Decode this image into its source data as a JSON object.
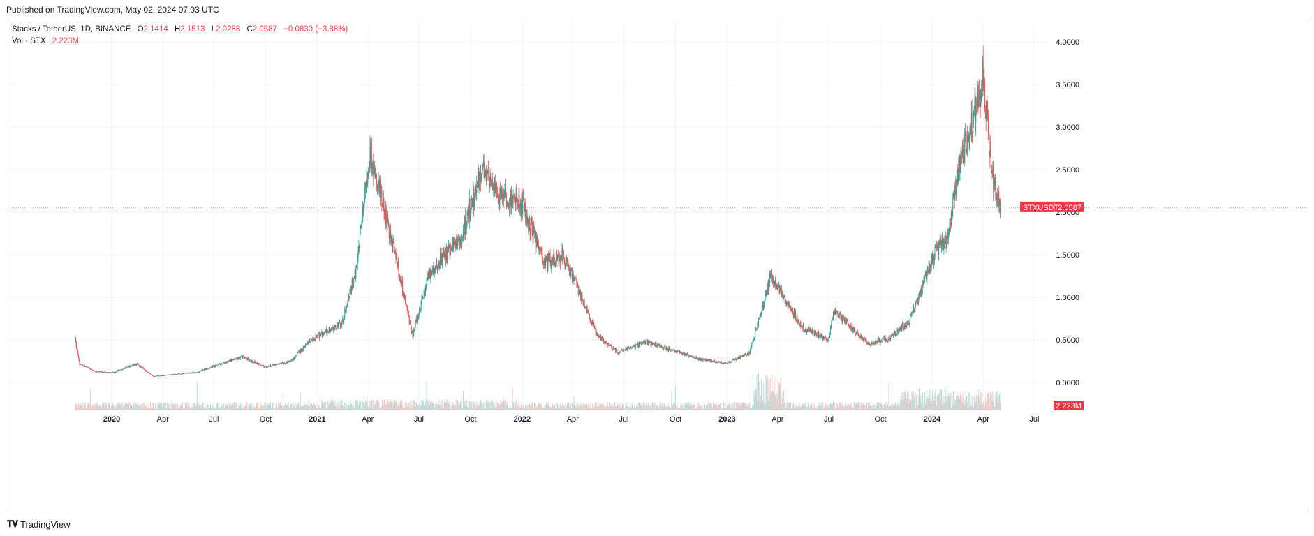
{
  "header": {
    "published": "Published on TradingView.com, May 02, 2024 07:03 UTC"
  },
  "legend": {
    "symbol": "Stacks / TetherUS, 1D, BINANCE",
    "o_label": "O",
    "o_value": "2.1414",
    "h_label": "H",
    "h_value": "2.1513",
    "l_label": "L",
    "l_value": "2.0288",
    "c_label": "C",
    "c_value": "2.0587",
    "change": "−0.0830 (−3.88%)",
    "vol_label": "Vol · STX",
    "vol_value": "2.223M"
  },
  "price_badge": {
    "symbol": "STXUSDT",
    "value": "2.0587"
  },
  "volume_badge": {
    "value": "2.223M"
  },
  "footer": {
    "brand": "TradingView",
    "logo": "tradingview-logo"
  },
  "colors": {
    "up": "#26a69a",
    "down": "#ef5350",
    "badge": "#f23645",
    "grid": "#f0f3fa"
  },
  "chart_data": {
    "type": "candlestick",
    "title": "Stacks / TetherUS, 1D, BINANCE",
    "ylim": [
      0,
      4.0
    ],
    "y_ticks": [
      "0.0000",
      "0.5000",
      "1.0000",
      "1.5000",
      "2.0000",
      "2.5000",
      "3.0000",
      "3.5000",
      "4.0000"
    ],
    "x_ticks": [
      "2020",
      "Apr",
      "Jul",
      "Oct",
      "2021",
      "Apr",
      "Jul",
      "Oct",
      "2022",
      "Apr",
      "Jul",
      "Oct",
      "2023",
      "Apr",
      "Jul",
      "Oct",
      "2024",
      "Apr",
      "Jul"
    ],
    "last_close": 2.0587,
    "grid": true,
    "price_path": [
      {
        "date": "2019-10-28",
        "price": 0.5
      },
      {
        "date": "2019-11-05",
        "price": 0.22
      },
      {
        "date": "2019-12-01",
        "price": 0.13
      },
      {
        "date": "2020-01-01",
        "price": 0.11
      },
      {
        "date": "2020-02-15",
        "price": 0.22
      },
      {
        "date": "2020-03-15",
        "price": 0.07
      },
      {
        "date": "2020-06-01",
        "price": 0.12
      },
      {
        "date": "2020-08-20",
        "price": 0.3
      },
      {
        "date": "2020-10-01",
        "price": 0.18
      },
      {
        "date": "2020-11-15",
        "price": 0.25
      },
      {
        "date": "2020-12-20",
        "price": 0.5
      },
      {
        "date": "2021-02-15",
        "price": 0.7
      },
      {
        "date": "2021-03-10",
        "price": 1.3
      },
      {
        "date": "2021-04-05",
        "price": 2.7
      },
      {
        "date": "2021-05-20",
        "price": 1.5
      },
      {
        "date": "2021-06-20",
        "price": 0.55
      },
      {
        "date": "2021-07-20",
        "price": 1.3
      },
      {
        "date": "2021-09-15",
        "price": 1.7
      },
      {
        "date": "2021-10-20",
        "price": 2.5
      },
      {
        "date": "2021-11-20",
        "price": 2.2
      },
      {
        "date": "2021-12-31",
        "price": 2.1
      },
      {
        "date": "2022-02-10",
        "price": 1.4
      },
      {
        "date": "2022-03-15",
        "price": 1.5
      },
      {
        "date": "2022-05-15",
        "price": 0.55
      },
      {
        "date": "2022-06-20",
        "price": 0.35
      },
      {
        "date": "2022-08-10",
        "price": 0.48
      },
      {
        "date": "2022-11-10",
        "price": 0.28
      },
      {
        "date": "2022-12-31",
        "price": 0.22
      },
      {
        "date": "2023-02-10",
        "price": 0.35
      },
      {
        "date": "2023-03-20",
        "price": 1.25
      },
      {
        "date": "2023-05-15",
        "price": 0.65
      },
      {
        "date": "2023-07-01",
        "price": 0.5
      },
      {
        "date": "2023-07-10",
        "price": 0.85
      },
      {
        "date": "2023-09-10",
        "price": 0.45
      },
      {
        "date": "2023-10-15",
        "price": 0.52
      },
      {
        "date": "2023-11-20",
        "price": 0.7
      },
      {
        "date": "2024-01-05",
        "price": 1.5
      },
      {
        "date": "2024-01-28",
        "price": 1.7
      },
      {
        "date": "2024-02-20",
        "price": 2.6
      },
      {
        "date": "2024-03-10",
        "price": 3.0
      },
      {
        "date": "2024-04-01",
        "price": 3.6
      },
      {
        "date": "2024-04-20",
        "price": 2.3
      },
      {
        "date": "2024-05-02",
        "price": 2.0587
      }
    ]
  }
}
